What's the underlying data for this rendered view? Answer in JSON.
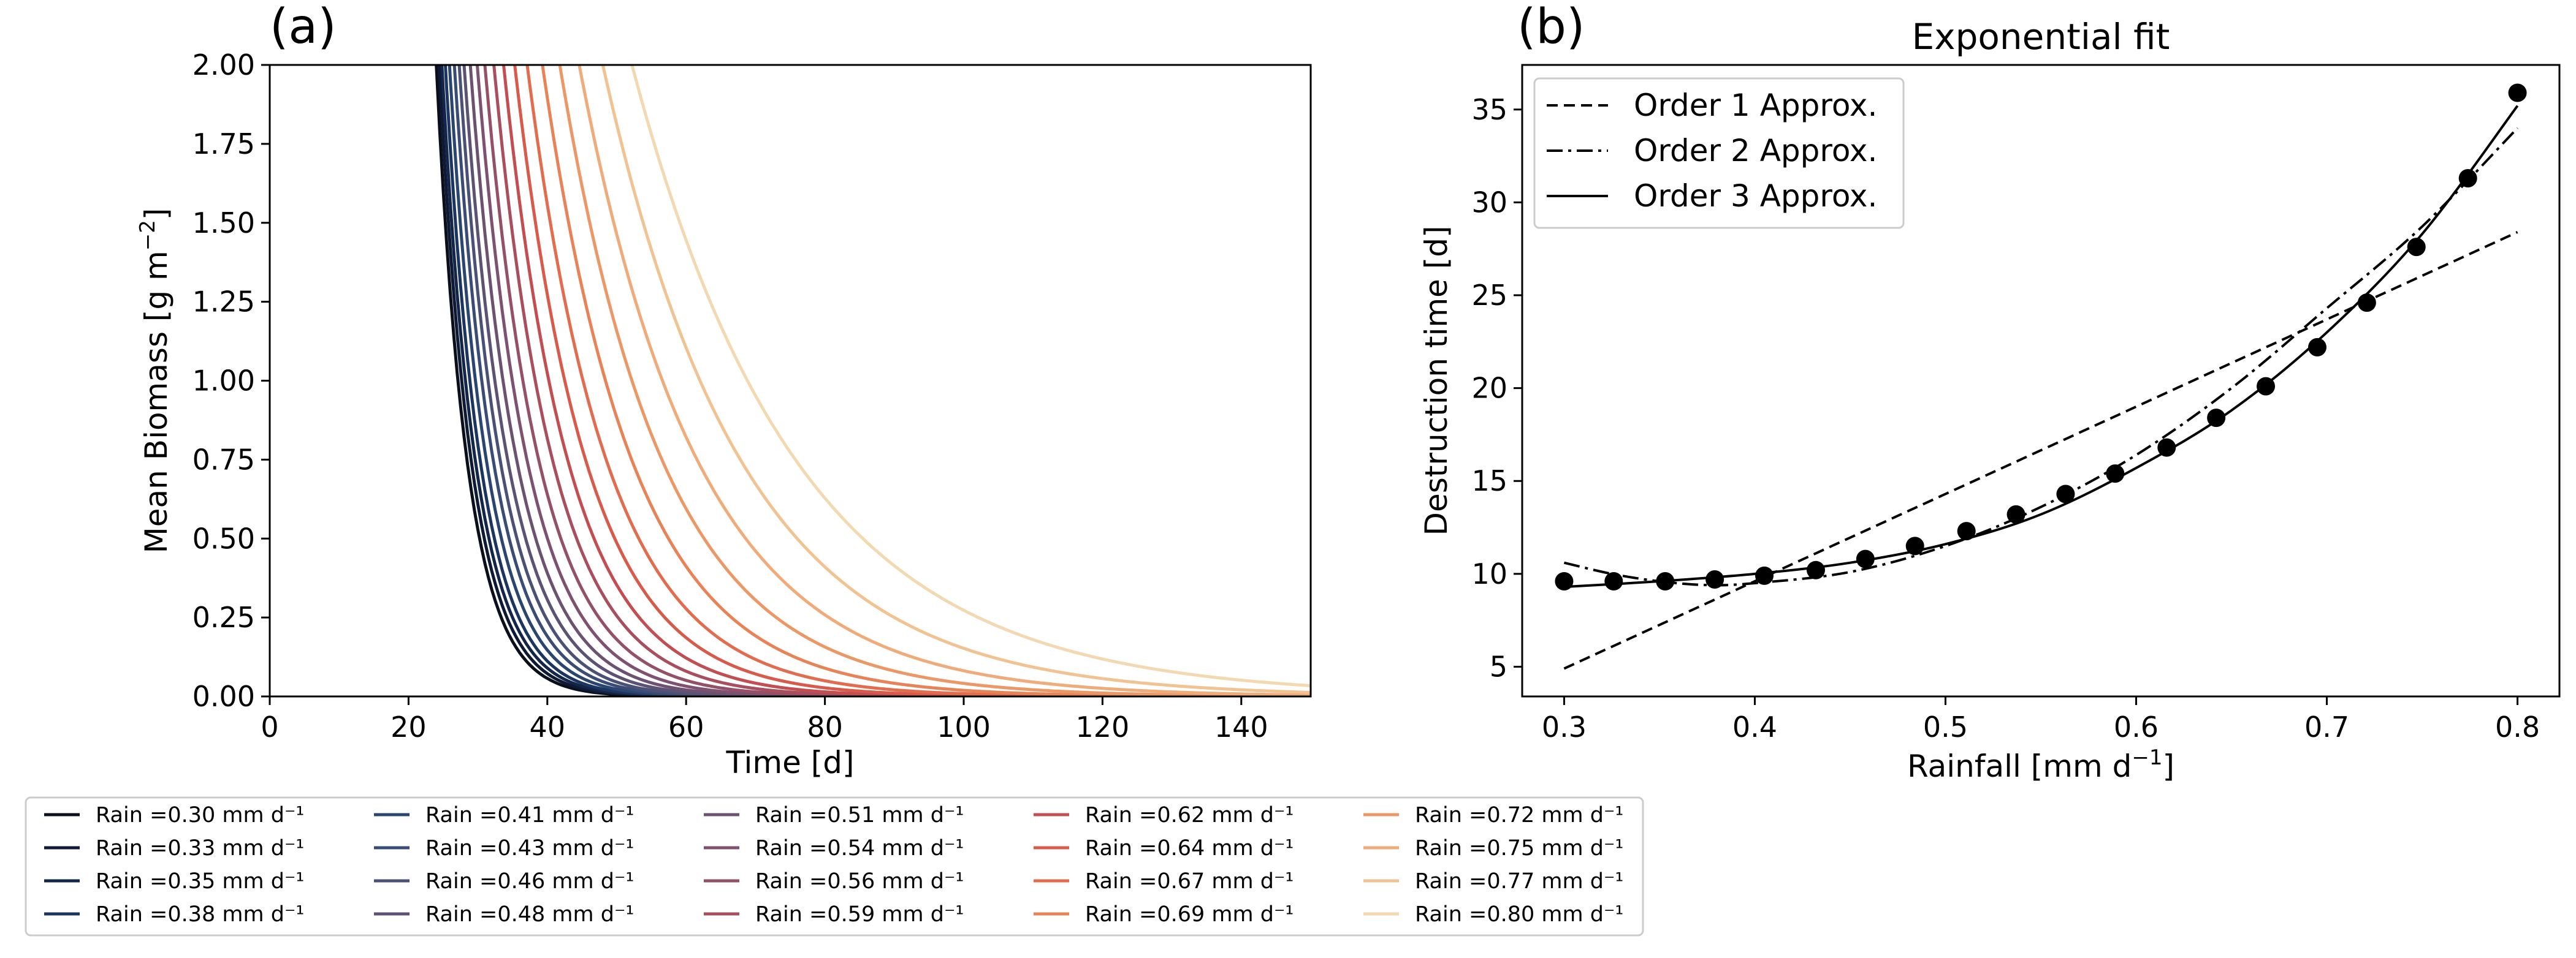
{
  "chart_data": [
    {
      "type": "line",
      "panel_label": "(a)",
      "xlabel": "Time [d]",
      "ylabel": "Mean Biomass [g m$^{-2}$]",
      "xlim": [
        0,
        150
      ],
      "ylim": [
        0,
        2.0
      ],
      "xticks": [
        "0",
        "20",
        "40",
        "60",
        "80",
        "100",
        "120",
        "140"
      ],
      "yticks": [
        "0.00",
        "0.25",
        "0.50",
        "0.75",
        "1.00",
        "1.25",
        "1.50",
        "1.75",
        "2.00"
      ],
      "legend": {
        "placement": "below",
        "columns": 5,
        "unit": "mm d$^{-1}$",
        "prefix": "Rain ="
      },
      "series": [
        {
          "name": "Rain =0.30 mm d⁻¹",
          "rain": 0.3,
          "color": "#0b0f1c",
          "t0": 24.0,
          "tau": 4.5
        },
        {
          "name": "Rain =0.33 mm d⁻¹",
          "rain": 0.33,
          "color": "#0e1a33",
          "t0": 24.4,
          "tau": 4.7
        },
        {
          "name": "Rain =0.35 mm d⁻¹",
          "rain": 0.35,
          "color": "#132649",
          "t0": 24.8,
          "tau": 4.9
        },
        {
          "name": "Rain =0.38 mm d⁻¹",
          "rain": 0.38,
          "color": "#1b3560",
          "t0": 25.3,
          "tau": 5.1
        },
        {
          "name": "Rain =0.41 mm d⁻¹",
          "rain": 0.41,
          "color": "#2a4570",
          "t0": 25.9,
          "tau": 5.4
        },
        {
          "name": "Rain =0.43 mm d⁻¹",
          "rain": 0.43,
          "color": "#3a4c75",
          "t0": 26.6,
          "tau": 5.7
        },
        {
          "name": "Rain =0.46 mm d⁻¹",
          "rain": 0.46,
          "color": "#4b5076",
          "t0": 27.3,
          "tau": 6.0
        },
        {
          "name": "Rain =0.48 mm d⁻¹",
          "rain": 0.48,
          "color": "#5b5274",
          "t0": 28.0,
          "tau": 6.4
        },
        {
          "name": "Rain =0.51 mm d⁻¹",
          "rain": 0.51,
          "color": "#6c5270",
          "t0": 28.9,
          "tau": 6.8
        },
        {
          "name": "Rain =0.54 mm d⁻¹",
          "rain": 0.54,
          "color": "#7f5170",
          "t0": 29.9,
          "tau": 7.3
        },
        {
          "name": "Rain =0.56 mm d⁻¹",
          "rain": 0.56,
          "color": "#945066",
          "t0": 31.0,
          "tau": 7.9
        },
        {
          "name": "Rain =0.59 mm d⁻¹",
          "rain": 0.59,
          "color": "#a84e5d",
          "t0": 32.3,
          "tau": 8.6
        },
        {
          "name": "Rain =0.62 mm d⁻¹",
          "rain": 0.62,
          "color": "#c24e52",
          "t0": 33.7,
          "tau": 9.4
        },
        {
          "name": "Rain =0.64 mm d⁻¹",
          "rain": 0.64,
          "color": "#d85a4b",
          "t0": 35.3,
          "tau": 10.4
        },
        {
          "name": "Rain =0.67 mm d⁻¹",
          "rain": 0.67,
          "color": "#e26d4e",
          "t0": 37.1,
          "tau": 11.6
        },
        {
          "name": "Rain =0.69 mm d⁻¹",
          "rain": 0.69,
          "color": "#e88358",
          "t0": 39.3,
          "tau": 13.1
        },
        {
          "name": "Rain =0.72 mm d⁻¹",
          "rain": 0.72,
          "color": "#ec9866",
          "t0": 41.8,
          "tau": 15.0
        },
        {
          "name": "Rain =0.75 mm d⁻¹",
          "rain": 0.75,
          "color": "#efac7a",
          "t0": 44.6,
          "tau": 17.3
        },
        {
          "name": "Rain =0.77 mm d⁻¹",
          "rain": 0.77,
          "color": "#f1c393",
          "t0": 48.0,
          "tau": 20.2
        },
        {
          "name": "Rain =0.80 mm d⁻¹",
          "rain": 0.8,
          "color": "#f2d9b2",
          "t0": 52.2,
          "tau": 24.0
        }
      ]
    },
    {
      "type": "scatter",
      "panel_label": "(b)",
      "title": "Exponential fit",
      "xlabel": "Rainfall [mm d$^{-1}$]",
      "ylabel": "Destruction time [d]",
      "xlim": [
        0.278,
        0.822
      ],
      "ylim": [
        3.4,
        37.4
      ],
      "xticks": [
        "0.3",
        "0.4",
        "0.5",
        "0.6",
        "0.7",
        "0.8"
      ],
      "yticks": [
        "5",
        "10",
        "15",
        "20",
        "25",
        "30",
        "35"
      ],
      "legend": {
        "placement": "top-left"
      },
      "points": {
        "x": [
          0.3,
          0.326,
          0.353,
          0.379,
          0.405,
          0.432,
          0.458,
          0.484,
          0.511,
          0.537,
          0.563,
          0.589,
          0.616,
          0.642,
          0.668,
          0.695,
          0.721,
          0.747,
          0.774,
          0.8
        ],
        "y": [
          9.6,
          9.6,
          9.6,
          9.7,
          9.9,
          10.2,
          10.8,
          11.5,
          12.3,
          13.2,
          14.3,
          15.4,
          16.8,
          18.4,
          20.1,
          22.2,
          24.6,
          27.6,
          31.3,
          35.9
        ]
      },
      "series": [
        {
          "name": "Order 1 Approx.",
          "style": "dashed",
          "x": [
            0.3,
            0.8
          ],
          "y": [
            4.9,
            28.4
          ]
        },
        {
          "name": "Order 2 Approx.",
          "style": "dashdot",
          "x": [
            0.3,
            0.325,
            0.35,
            0.375,
            0.4,
            0.45,
            0.5,
            0.55,
            0.6,
            0.65,
            0.7,
            0.75,
            0.8
          ],
          "y": [
            10.6,
            10.0,
            9.6,
            9.4,
            9.5,
            10.1,
            11.5,
            13.6,
            16.4,
            20.0,
            24.3,
            28.7,
            34.0
          ]
        },
        {
          "name": "Order 3 Approx.",
          "style": "solid",
          "x": [
            0.3,
            0.35,
            0.4,
            0.45,
            0.5,
            0.55,
            0.6,
            0.65,
            0.7,
            0.75,
            0.8
          ],
          "y": [
            9.3,
            9.6,
            10.0,
            10.6,
            11.6,
            13.2,
            15.7,
            18.8,
            23.0,
            28.3,
            35.2
          ]
        }
      ]
    }
  ]
}
